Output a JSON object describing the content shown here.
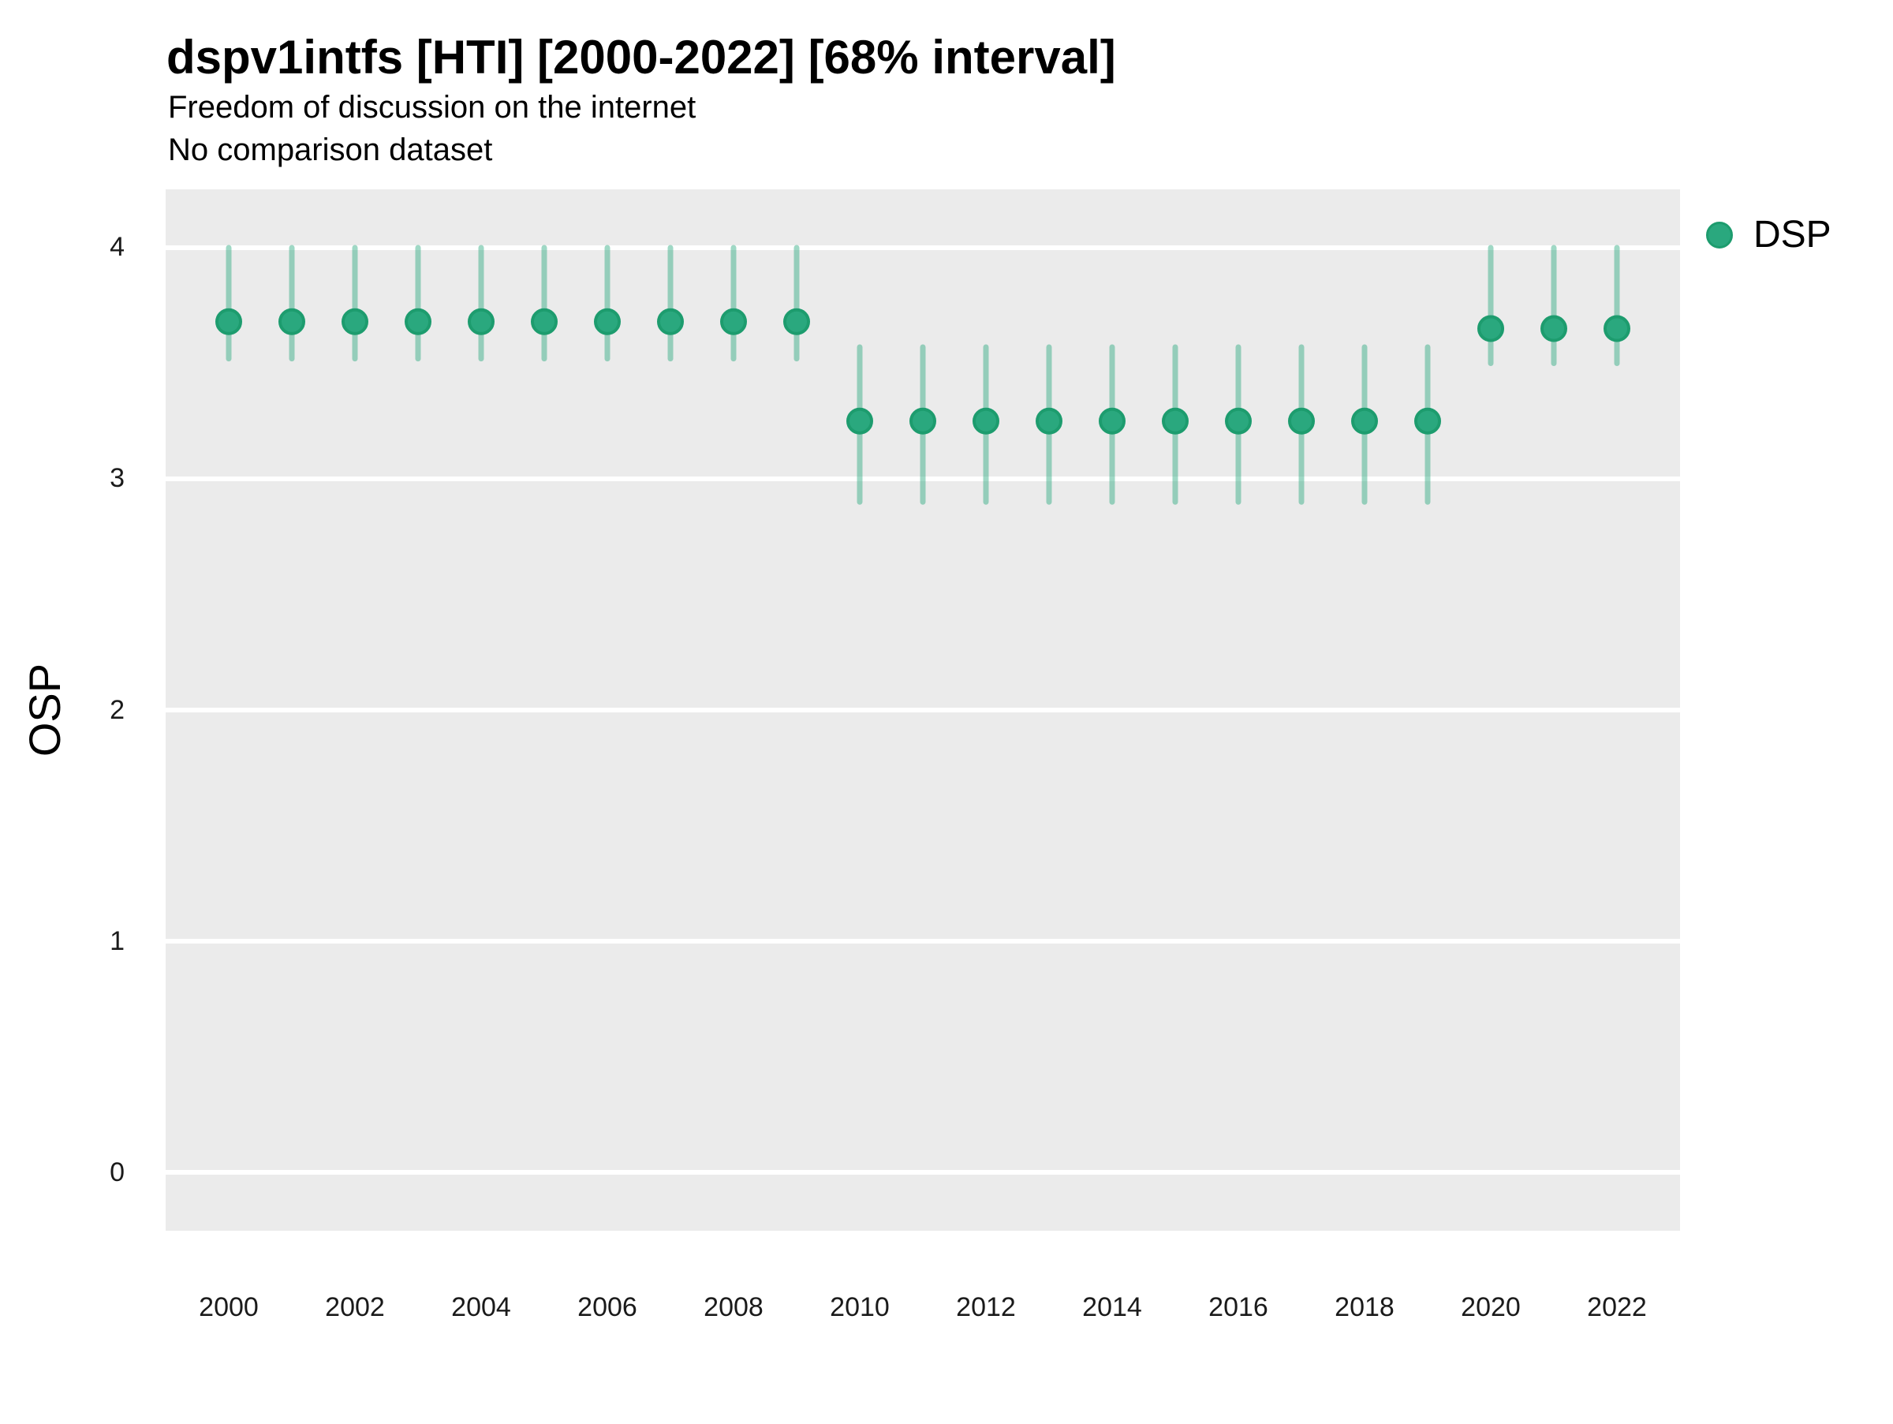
{
  "header": {
    "title": "dspv1intfs [HTI] [2000-2022] [68% interval]",
    "subtitle": "Freedom of discussion on the internet",
    "note": "No comparison dataset"
  },
  "legend": {
    "position": "right",
    "items": [
      {
        "label": "DSP",
        "color": "#2aa87e",
        "border": "#1d9c6e"
      }
    ]
  },
  "axes": {
    "y_title": "OSP",
    "x_title": "",
    "y_tick_labels": [
      "0",
      "1",
      "2",
      "3",
      "4"
    ],
    "x_tick_labels": [
      "2000",
      "2002",
      "2004",
      "2006",
      "2008",
      "2010",
      "2012",
      "2014",
      "2016",
      "2018",
      "2020",
      "2022"
    ]
  },
  "chart_data": {
    "type": "pointrange",
    "title": "dspv1intfs [HTI] [2000-2022] [68% interval]",
    "subtitle": "Freedom of discussion on the internet",
    "note": "No comparison dataset",
    "series_name": "DSP",
    "xlabel": "",
    "ylabel": "OSP",
    "interval": "68%",
    "x": [
      2000,
      2001,
      2002,
      2003,
      2004,
      2005,
      2006,
      2007,
      2008,
      2009,
      2010,
      2011,
      2012,
      2013,
      2014,
      2015,
      2016,
      2017,
      2018,
      2019,
      2020,
      2021,
      2022
    ],
    "values": [
      3.68,
      3.68,
      3.68,
      3.68,
      3.68,
      3.68,
      3.68,
      3.68,
      3.68,
      3.68,
      3.25,
      3.25,
      3.25,
      3.25,
      3.25,
      3.25,
      3.25,
      3.25,
      3.25,
      3.25,
      3.65,
      3.65,
      3.65
    ],
    "interval_low": [
      3.52,
      3.52,
      3.52,
      3.52,
      3.52,
      3.52,
      3.52,
      3.52,
      3.52,
      3.52,
      2.9,
      2.9,
      2.9,
      2.9,
      2.9,
      2.9,
      2.9,
      2.9,
      2.9,
      2.9,
      3.5,
      3.5,
      3.5
    ],
    "interval_high": [
      4.0,
      4.0,
      4.0,
      4.0,
      4.0,
      4.0,
      4.0,
      4.0,
      4.0,
      4.0,
      3.57,
      3.57,
      3.57,
      3.57,
      3.57,
      3.57,
      3.57,
      3.57,
      3.57,
      3.57,
      4.0,
      4.0,
      4.0
    ],
    "ylim": [
      0,
      4
    ],
    "y_ticks": [
      0,
      1,
      2,
      3,
      4
    ],
    "x_ticks": [
      2000,
      2002,
      2004,
      2006,
      2008,
      2010,
      2012,
      2014,
      2016,
      2018,
      2020,
      2022
    ],
    "grid": "horizontal-major",
    "legend_position": "right",
    "colors": {
      "point_fill": "#2aa87e",
      "point_stroke": "#1d9c6e",
      "interval_line": "rgba(42,168,126,0.45)",
      "panel_bg": "#ebebeb",
      "gridline": "#ffffff",
      "title_text": "#000000",
      "tick_text": "#1a1a1a"
    }
  }
}
